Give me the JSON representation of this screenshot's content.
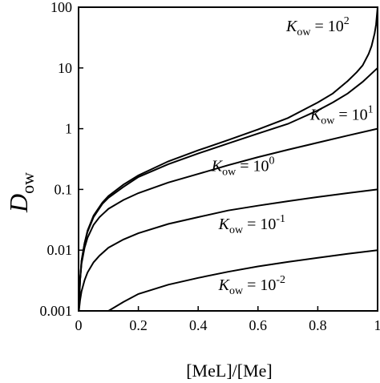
{
  "chart_data": {
    "type": "line",
    "xlabel": "[MeL]/[Me]",
    "ylabel": {
      "main": "D",
      "subscript": "ow"
    },
    "xlim": [
      0,
      1
    ],
    "ylim": [
      0.001,
      100
    ],
    "yscale": "log",
    "grid": false,
    "legend": "none",
    "x_ticks": [
      {
        "value": 0,
        "label": "0"
      },
      {
        "value": 0.2,
        "label": "0.2"
      },
      {
        "value": 0.4,
        "label": "0.4"
      },
      {
        "value": 0.6,
        "label": "0.6"
      },
      {
        "value": 0.8,
        "label": "0.8"
      },
      {
        "value": 1,
        "label": "1"
      }
    ],
    "y_ticks": [
      {
        "value": 0.001,
        "label": "0.001"
      },
      {
        "value": 0.01,
        "label": "0.01"
      },
      {
        "value": 0.1,
        "label": "0.1"
      },
      {
        "value": 1,
        "label": "1"
      },
      {
        "value": 10,
        "label": "10"
      },
      {
        "value": 100,
        "label": "100"
      }
    ],
    "series": [
      {
        "label": {
          "k": "K",
          "sub": "ow",
          "eq": " = 10",
          "exp": "2"
        },
        "anchor": [
          0.8,
          40
        ],
        "x": [
          0.001,
          0.005,
          0.01,
          0.02,
          0.03,
          0.05,
          0.08,
          0.1,
          0.15,
          0.2,
          0.3,
          0.4,
          0.5,
          0.6,
          0.7,
          0.8,
          0.85,
          0.9,
          0.93,
          0.95,
          0.97,
          0.98,
          0.99,
          0.995,
          1.0
        ],
        "y": [
          0.001,
          0.0033,
          0.0067,
          0.013,
          0.021,
          0.037,
          0.061,
          0.078,
          0.12,
          0.17,
          0.29,
          0.44,
          0.65,
          0.97,
          1.5,
          2.7,
          3.8,
          6.1,
          8.5,
          11,
          17,
          23,
          37,
          52,
          100
        ]
      },
      {
        "label": {
          "k": "K",
          "sub": "ow",
          "eq": " = 10",
          "exp": "1"
        },
        "anchor": [
          0.88,
          1.4
        ],
        "x": [
          0.001,
          0.005,
          0.01,
          0.02,
          0.03,
          0.05,
          0.08,
          0.1,
          0.15,
          0.2,
          0.3,
          0.4,
          0.5,
          0.6,
          0.7,
          0.8,
          0.85,
          0.9,
          0.95,
          1.0
        ],
        "y": [
          0.001,
          0.0032,
          0.0066,
          0.013,
          0.02,
          0.035,
          0.058,
          0.073,
          0.11,
          0.16,
          0.26,
          0.39,
          0.57,
          0.83,
          1.2,
          2.0,
          2.7,
          3.8,
          5.9,
          10
        ]
      },
      {
        "label": {
          "k": "K",
          "sub": "ow",
          "eq": " = 10",
          "exp": "0"
        },
        "anchor": [
          0.55,
          0.2
        ],
        "x": [
          0.001,
          0.003,
          0.005,
          0.01,
          0.02,
          0.03,
          0.05,
          0.07,
          0.1,
          0.15,
          0.2,
          0.3,
          0.4,
          0.5,
          0.6,
          0.7,
          0.8,
          0.9,
          1.0
        ],
        "y": [
          0.001,
          0.002,
          0.0032,
          0.006,
          0.011,
          0.016,
          0.026,
          0.035,
          0.048,
          0.067,
          0.087,
          0.13,
          0.18,
          0.25,
          0.34,
          0.45,
          0.59,
          0.77,
          1.0
        ]
      },
      {
        "label": {
          "k": "K",
          "sub": "ow",
          "eq": " = 10",
          "exp": "-1"
        },
        "anchor": [
          0.58,
          0.022
        ],
        "x": [
          0.001,
          0.005,
          0.01,
          0.02,
          0.03,
          0.05,
          0.07,
          0.1,
          0.15,
          0.2,
          0.3,
          0.4,
          0.5,
          0.6,
          0.7,
          0.8,
          0.9,
          1.0
        ],
        "y": [
          0.001,
          0.0015,
          0.0021,
          0.0032,
          0.0043,
          0.0063,
          0.0081,
          0.011,
          0.015,
          0.019,
          0.027,
          0.035,
          0.045,
          0.054,
          0.064,
          0.075,
          0.087,
          0.1
        ]
      },
      {
        "label": {
          "k": "K",
          "sub": "ow",
          "eq": " = 10",
          "exp": "-2"
        },
        "anchor": [
          0.58,
          0.0022
        ],
        "x": [
          0.1,
          0.15,
          0.2,
          0.3,
          0.4,
          0.5,
          0.6,
          0.7,
          0.8,
          0.9,
          1.0
        ],
        "y": [
          0.001,
          0.0014,
          0.0019,
          0.0027,
          0.0035,
          0.0044,
          0.0054,
          0.0064,
          0.0075,
          0.0087,
          0.01
        ]
      }
    ]
  }
}
